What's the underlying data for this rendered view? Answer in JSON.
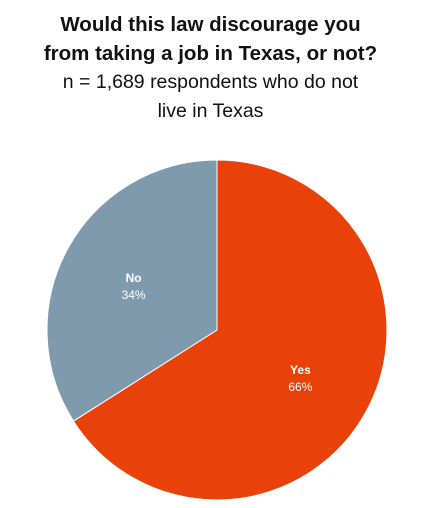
{
  "chart_data": {
    "type": "pie",
    "title_lines": [
      "Would this law discourage you",
      "from taking a job in Texas, or not?"
    ],
    "subtitle_lines": [
      "n = 1,689 respondents who do not",
      "live in Texas"
    ],
    "slices": [
      {
        "label": "Yes",
        "value": 66,
        "value_label": "66%",
        "color": "#e8420a"
      },
      {
        "label": "No",
        "value": 34,
        "value_label": "34%",
        "color": "#7f9aad"
      }
    ],
    "start_angle_deg": 0,
    "direction": "clockwise",
    "legend": "none"
  }
}
